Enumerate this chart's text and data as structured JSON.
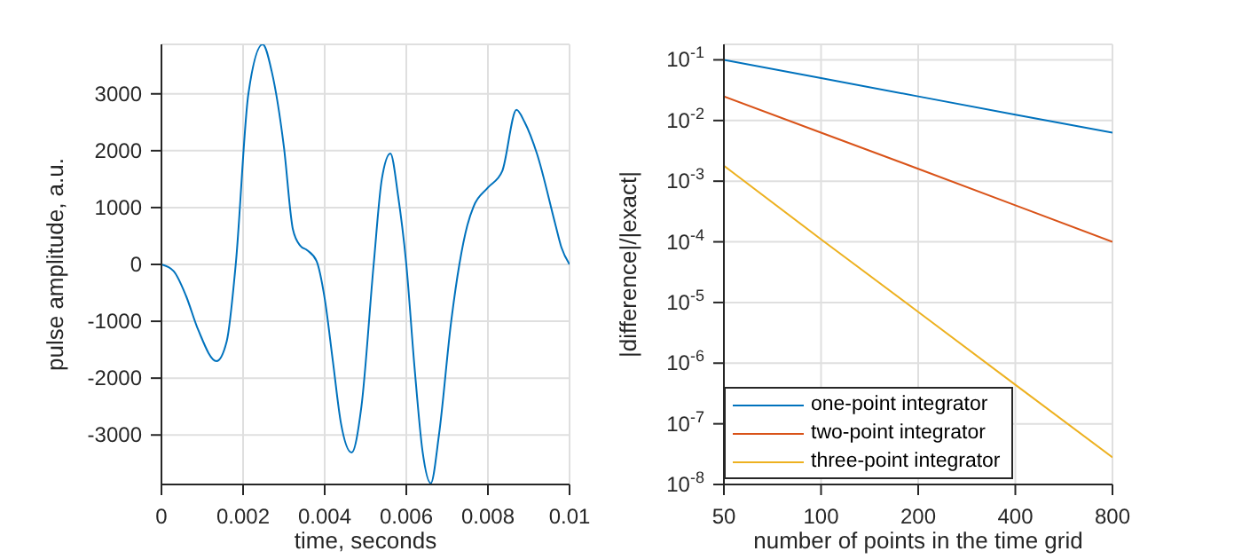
{
  "chart_data": [
    {
      "type": "line",
      "xlabel": "time, seconds",
      "ylabel": "pulse amplitude, a.u.",
      "xlim": [
        0,
        0.01
      ],
      "xticks": [
        0,
        0.002,
        0.004,
        0.006,
        0.008,
        0.01
      ],
      "ylim": [
        -3870,
        3870
      ],
      "yticks": [
        -3000,
        -2000,
        -1000,
        0,
        1000,
        2000,
        3000
      ],
      "grid": true,
      "legend": false,
      "marker": "none",
      "line_style": "solid",
      "x": [
        0,
        0.0003,
        0.0006,
        0.0009,
        0.00135,
        0.0016,
        0.00182,
        0.00213,
        0.00248,
        0.0027,
        0.003,
        0.00322,
        0.0034,
        0.00357,
        0.0038,
        0.004,
        0.0042,
        0.0044,
        0.00466,
        0.0049,
        0.0052,
        0.0054,
        0.00561,
        0.0058,
        0.006,
        0.0062,
        0.0064,
        0.0066,
        0.0068,
        0.0071,
        0.0073,
        0.0075,
        0.00765,
        0.008,
        0.00835,
        0.0087,
        0.0089,
        0.0092,
        0.00965,
        0.0098,
        0.01
      ],
      "series": [
        {
          "color": "#0072bd",
          "values": [
            0,
            -120,
            -550,
            -1150,
            -1700,
            -1350,
            0,
            3000,
            3870,
            3400,
            2070,
            620,
            330,
            250,
            60,
            -600,
            -1700,
            -2800,
            -3310,
            -2500,
            0,
            1500,
            1950,
            1200,
            0,
            -1800,
            -3300,
            -3850,
            -3000,
            -1000,
            0,
            700,
            1020,
            1350,
            1640,
            2720,
            2500,
            1950,
            710,
            300,
            0
          ]
        }
      ]
    },
    {
      "type": "line",
      "xlabel": "number of points in the time grid",
      "ylabel": "|difference|/|exact|",
      "log": "xy",
      "xlim": [
        50,
        800
      ],
      "xticks": [
        50,
        100,
        200,
        400,
        800
      ],
      "ylim": [
        1e-08,
        0.18
      ],
      "yticks": [
        {
          "value": 1e-08,
          "label": "10$^{-8}$"
        },
        {
          "value": 1e-07,
          "label": "10$^{-7}$"
        },
        {
          "value": 1e-06,
          "label": "10$^{-6}$"
        },
        {
          "value": 1e-05,
          "label": "10$^{-5}$"
        },
        {
          "value": 0.0001,
          "label": "10$^{-4}$"
        },
        {
          "value": 0.001,
          "label": "10$^{-3}$"
        },
        {
          "value": 0.01,
          "label": "10$^{-2}$"
        },
        {
          "value": 0.1,
          "label": "10$^{-1}$"
        }
      ],
      "grid": true,
      "legend": "bottom left",
      "marker": "none",
      "line_style": "solid",
      "x": [
        50,
        100,
        200,
        400,
        800
      ],
      "series": [
        {
          "name": "one-point integrator",
          "color": "#0072bd",
          "values": [
            0.1,
            0.05,
            0.025,
            0.0125,
            0.0063
          ]
        },
        {
          "name": "two-point integrator",
          "color": "#d95319",
          "values": [
            0.025,
            0.0063,
            0.0016,
            0.0004,
            0.0001
          ]
        },
        {
          "name": "three-point integrator",
          "color": "#edb120",
          "values": [
            0.0018,
            0.00011,
            7e-06,
            4.4e-07,
            2.8e-08
          ]
        }
      ]
    }
  ]
}
